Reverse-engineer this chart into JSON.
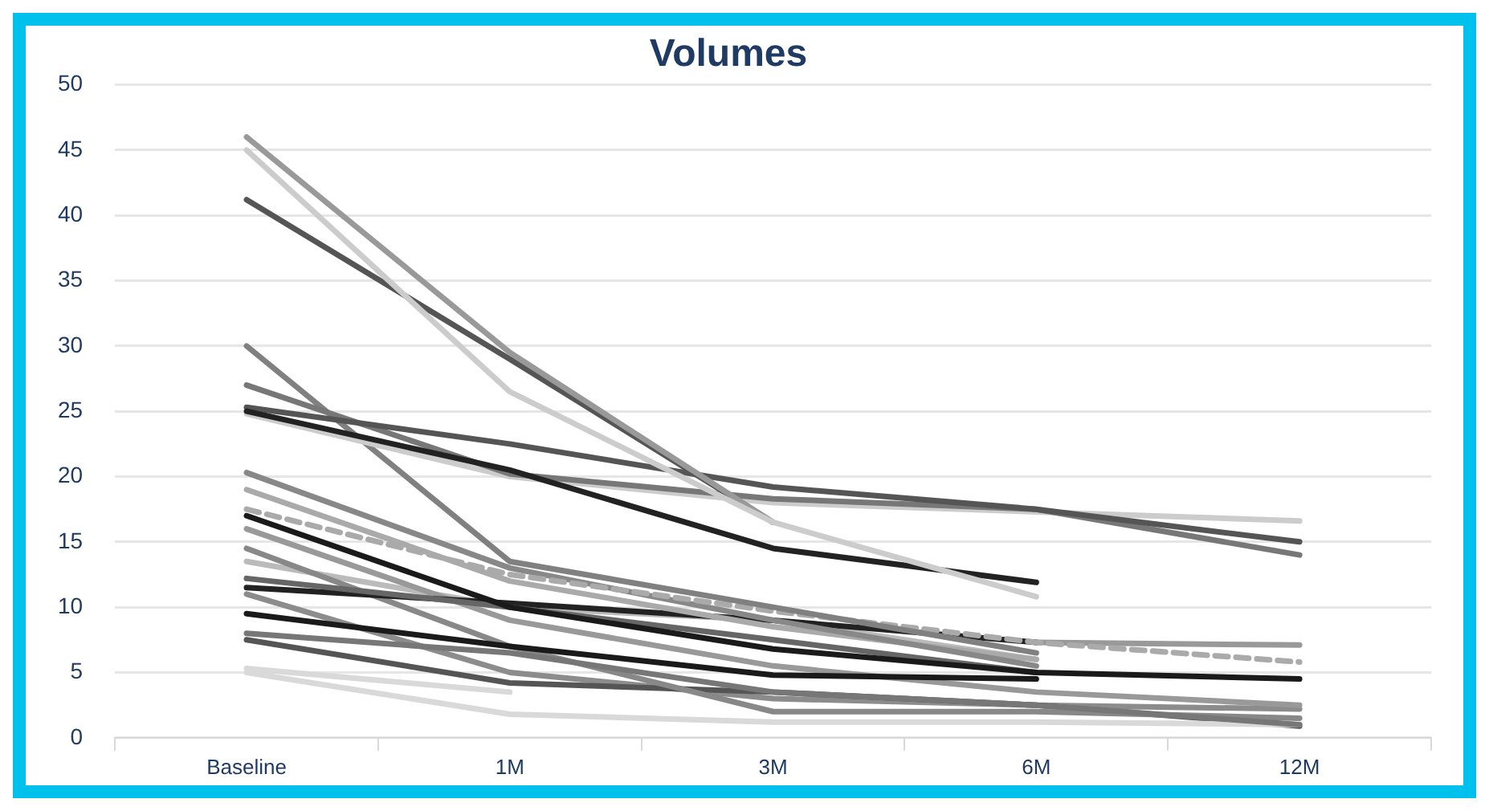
{
  "chart_data": {
    "type": "line",
    "title": "Volumes",
    "categories": [
      "Baseline",
      "1M",
      "3M",
      "6M",
      "12M"
    ],
    "ylim": [
      0,
      50
    ],
    "yticks": [
      0,
      5,
      10,
      15,
      20,
      25,
      30,
      35,
      40,
      45,
      50
    ],
    "grid": "y",
    "legend": false,
    "marker": "none",
    "line_style": "solid",
    "series": [
      {
        "color": "#cccccc",
        "values": [
          45,
          26.5,
          16.5,
          10.8,
          null
        ]
      },
      {
        "color": "#999999",
        "values": [
          46,
          29.5,
          16.5,
          null,
          null
        ]
      },
      {
        "color": "#555555",
        "values": [
          41.2,
          29,
          16.5,
          null,
          null
        ]
      },
      {
        "color": "#222222",
        "values": [
          25,
          20.5,
          14.5,
          11.9,
          null
        ]
      },
      {
        "color": "#555555",
        "values": [
          25.3,
          22.5,
          19.2,
          17.5,
          15
        ]
      },
      {
        "color": "#777777",
        "values": [
          27,
          20.2,
          18.3,
          17.5,
          14
        ]
      },
      {
        "color": "#cccccc",
        "values": [
          24.8,
          20,
          18,
          17.3,
          16.6
        ]
      },
      {
        "color": "#808080",
        "values": [
          30,
          13.5,
          10,
          6.5,
          null
        ]
      },
      {
        "color": "#aaaaaa",
        "line_style": "dashed",
        "values": [
          17.5,
          12.5,
          9.7,
          7.3,
          5.8
        ]
      },
      {
        "color": "#888888",
        "values": [
          20.3,
          13,
          9,
          5.5,
          null
        ]
      },
      {
        "color": "#aaaaaa",
        "values": [
          19,
          12,
          8.5,
          6,
          null
        ]
      },
      {
        "color": "#1a1a1a",
        "values": [
          17,
          10,
          6.8,
          5,
          4.5
        ]
      },
      {
        "color": "#666666",
        "values": [
          12.2,
          10,
          7.5,
          5,
          null
        ]
      },
      {
        "color": "#222222",
        "values": [
          11.5,
          10.3,
          9,
          7.3,
          null
        ]
      },
      {
        "color": "#999999",
        "values": [
          null,
          null,
          null,
          7.3,
          7.1
        ]
      },
      {
        "color": "#1a1a1a",
        "values": [
          9.5,
          7,
          4.8,
          4.5,
          null
        ]
      },
      {
        "color": "#777777",
        "values": [
          8,
          6.5,
          3.5,
          2.5,
          1
        ]
      },
      {
        "color": "#d9d9d9",
        "values": [
          5.3,
          3.5,
          null,
          null,
          null
        ]
      },
      {
        "color": "#d9d9d9",
        "values": [
          5,
          1.8,
          1.2,
          1.2,
          1
        ]
      },
      {
        "color": "#888888",
        "values": [
          14.5,
          7,
          2,
          2,
          1.5
        ]
      },
      {
        "color": "#999999",
        "values": [
          16,
          9,
          5.5,
          3.5,
          2.5
        ]
      },
      {
        "color": "#555555",
        "values": [
          7.5,
          4.2,
          3.5,
          2.5,
          0.9
        ]
      },
      {
        "color": "#bbbbbb",
        "values": [
          13.5,
          10,
          9,
          6,
          null
        ]
      },
      {
        "color": "#8c8c8c",
        "values": [
          11,
          5,
          3,
          2.5,
          2.2
        ]
      }
    ]
  }
}
